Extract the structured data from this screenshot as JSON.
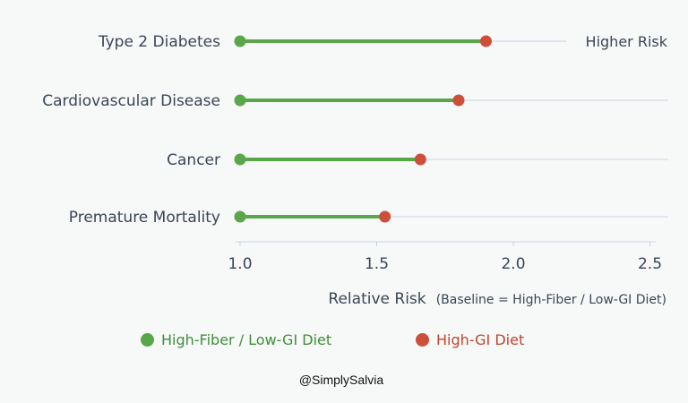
{
  "chart_data": {
    "type": "dumbbell",
    "categories": [
      "Type 2 Diabetes",
      "Cardiovascular Disease",
      "Cancer",
      "Premature Mortality"
    ],
    "series": [
      {
        "name": "High-Fiber / Low-GI Diet",
        "values": [
          1.0,
          1.0,
          1.0,
          1.0
        ],
        "color": "#5aa64a"
      },
      {
        "name": "High-GI Diet",
        "values": [
          1.9,
          1.8,
          1.66,
          1.53
        ],
        "color": "#cc4f3a"
      }
    ],
    "xlabel_main": "Relative Risk",
    "xlabel_sub": "(Baseline = High-Fiber / Low-GI Diet)",
    "xlim": [
      1.0,
      2.55
    ],
    "xticks": [
      1.0,
      1.5,
      2.0,
      2.5
    ],
    "tick_labels": [
      "1.0",
      "1.5",
      "2.0",
      "2.5"
    ],
    "annotation": "Higher Risk",
    "line_color": "#5aa64a",
    "grid_color": "#c8d2e3"
  },
  "legend": {
    "low_gi": "High-Fiber / Low-GI Diet",
    "high_gi": "High-GI Diet",
    "low_color": "#5aa64a",
    "high_color": "#cc4f3a"
  },
  "watermark": "@SimplySalvia"
}
